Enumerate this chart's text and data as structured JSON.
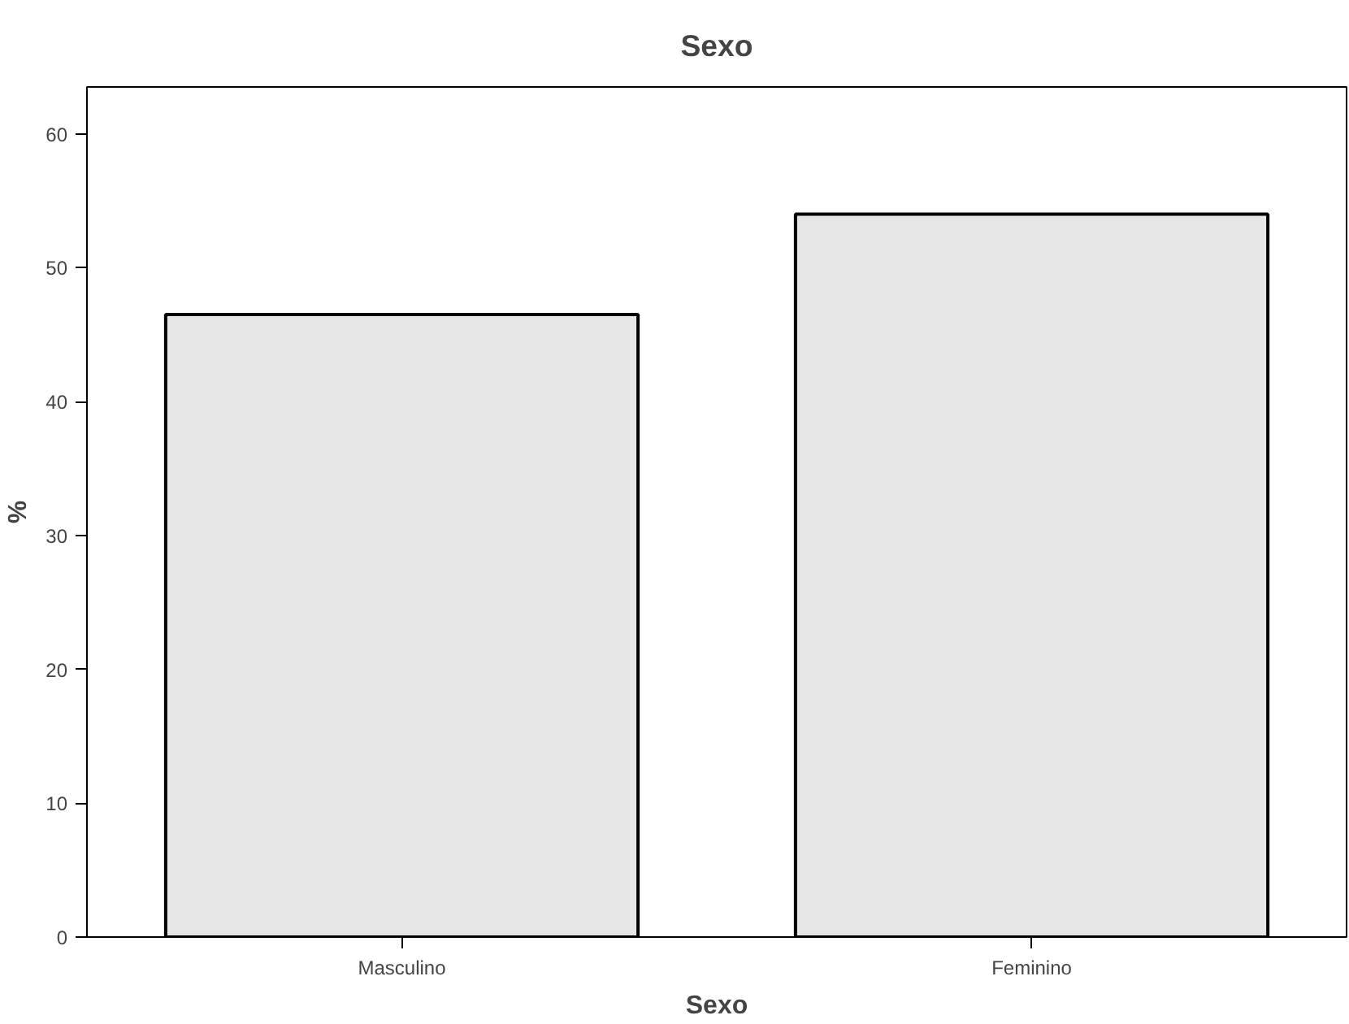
{
  "chart_data": {
    "type": "bar",
    "title": "Sexo",
    "xlabel": "Sexo",
    "ylabel": "%",
    "categories": [
      "Masculino",
      "Feminino"
    ],
    "values": [
      46.5,
      54.0
    ],
    "color": "#e6e6e6",
    "ylim": [
      0,
      63.5
    ],
    "yticks": [
      0,
      10,
      20,
      30,
      40,
      50,
      60
    ],
    "grid": false
  }
}
